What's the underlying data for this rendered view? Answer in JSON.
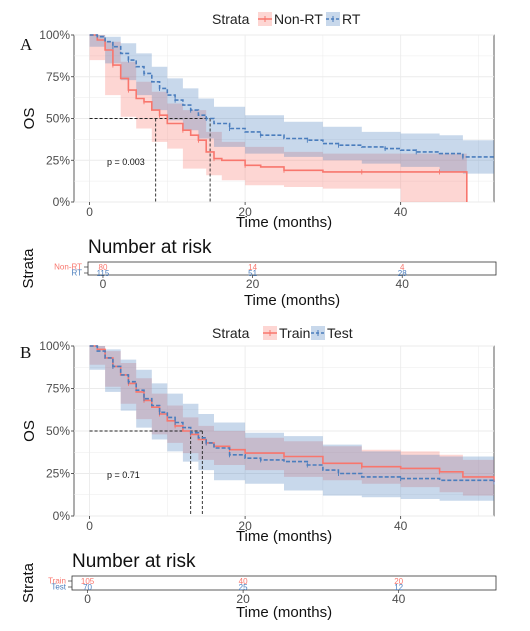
{
  "chart_data": [
    {
      "panel": "A",
      "type": "line",
      "subtype": "kaplan-meier",
      "legend_title": "Strata",
      "legend_position": "top",
      "xlabel": "Time (months)",
      "ylabel": "OS",
      "xlim": [
        -2,
        52
      ],
      "ylim": [
        0,
        1
      ],
      "xticks": [
        0,
        20,
        40
      ],
      "yticks": [
        "0%",
        "25%",
        "50%",
        "75%",
        "100%"
      ],
      "grid": true,
      "pvalue": "p = 0.003",
      "median_lines": [
        8.5,
        15.5
      ],
      "series": [
        {
          "name": "Non-RT",
          "color": "#F8766D",
          "linestyle": "solid",
          "curve": [
            [
              0,
              1.0
            ],
            [
              1,
              0.97
            ],
            [
              2,
              0.91
            ],
            [
              3,
              0.82
            ],
            [
              4,
              0.74
            ],
            [
              5,
              0.67
            ],
            [
              6,
              0.62
            ],
            [
              7,
              0.6
            ],
            [
              8,
              0.55
            ],
            [
              9,
              0.52
            ],
            [
              10,
              0.47
            ],
            [
              12,
              0.43
            ],
            [
              13,
              0.4
            ],
            [
              14,
              0.37
            ],
            [
              15,
              0.3
            ],
            [
              16,
              0.26
            ],
            [
              17,
              0.25
            ],
            [
              20,
              0.22
            ],
            [
              22,
              0.21
            ],
            [
              25,
              0.19
            ],
            [
              30,
              0.18
            ],
            [
              35,
              0.18
            ],
            [
              40,
              0.18
            ],
            [
              45,
              0.18
            ],
            [
              48.5,
              0.18
            ],
            [
              48.5,
              0.0
            ]
          ],
          "lower": [
            [
              0,
              1.0
            ],
            [
              2,
              0.85
            ],
            [
              4,
              0.64
            ],
            [
              6,
              0.51
            ],
            [
              8,
              0.44
            ],
            [
              10,
              0.36
            ],
            [
              12,
              0.32
            ],
            [
              15,
              0.2
            ],
            [
              17,
              0.16
            ],
            [
              20,
              0.13
            ],
            [
              25,
              0.1
            ],
            [
              30,
              0.09
            ],
            [
              40,
              0.08
            ],
            [
              48.5,
              0.0
            ]
          ],
          "upper": [
            [
              0,
              1.0
            ],
            [
              2,
              0.96
            ],
            [
              4,
              0.84
            ],
            [
              6,
              0.72
            ],
            [
              8,
              0.66
            ],
            [
              10,
              0.59
            ],
            [
              12,
              0.55
            ],
            [
              15,
              0.42
            ],
            [
              17,
              0.36
            ],
            [
              20,
              0.33
            ],
            [
              25,
              0.3
            ],
            [
              30,
              0.29
            ],
            [
              40,
              0.29
            ],
            [
              48.5,
              0.29
            ]
          ]
        },
        {
          "name": "RT",
          "color": "#4A7DBD",
          "linestyle": "dashed",
          "curve": [
            [
              0,
              1.0
            ],
            [
              1,
              0.99
            ],
            [
              2,
              0.96
            ],
            [
              3,
              0.93
            ],
            [
              4,
              0.89
            ],
            [
              5,
              0.85
            ],
            [
              6,
              0.81
            ],
            [
              7,
              0.77
            ],
            [
              8,
              0.72
            ],
            [
              9,
              0.68
            ],
            [
              10,
              0.64
            ],
            [
              11,
              0.61
            ],
            [
              12,
              0.58
            ],
            [
              13,
              0.55
            ],
            [
              14,
              0.52
            ],
            [
              15,
              0.5
            ],
            [
              16,
              0.47
            ],
            [
              18,
              0.44
            ],
            [
              20,
              0.42
            ],
            [
              22,
              0.4
            ],
            [
              25,
              0.38
            ],
            [
              28,
              0.37
            ],
            [
              30,
              0.35
            ],
            [
              32,
              0.34
            ],
            [
              35,
              0.33
            ],
            [
              38,
              0.32
            ],
            [
              40,
              0.31
            ],
            [
              42,
              0.3
            ],
            [
              45,
              0.29
            ],
            [
              48,
              0.27
            ],
            [
              52,
              0.26
            ]
          ],
          "lower": [
            [
              0,
              1.0
            ],
            [
              2,
              0.93
            ],
            [
              4,
              0.83
            ],
            [
              6,
              0.73
            ],
            [
              8,
              0.64
            ],
            [
              10,
              0.55
            ],
            [
              12,
              0.49
            ],
            [
              14,
              0.43
            ],
            [
              16,
              0.38
            ],
            [
              20,
              0.33
            ],
            [
              25,
              0.29
            ],
            [
              30,
              0.27
            ],
            [
              35,
              0.25
            ],
            [
              40,
              0.23
            ],
            [
              45,
              0.21
            ],
            [
              48,
              0.18
            ],
            [
              52,
              0.17
            ]
          ],
          "upper": [
            [
              0,
              1.0
            ],
            [
              2,
              0.99
            ],
            [
              4,
              0.95
            ],
            [
              6,
              0.89
            ],
            [
              8,
              0.81
            ],
            [
              10,
              0.74
            ],
            [
              12,
              0.68
            ],
            [
              14,
              0.62
            ],
            [
              16,
              0.57
            ],
            [
              20,
              0.52
            ],
            [
              25,
              0.48
            ],
            [
              30,
              0.45
            ],
            [
              35,
              0.42
            ],
            [
              40,
              0.41
            ],
            [
              45,
              0.4
            ],
            [
              48,
              0.37
            ],
            [
              52,
              0.36
            ]
          ]
        }
      ],
      "risk_table": {
        "title": "Number at risk",
        "ylabel": "Strata",
        "xlabel": "Time (months)",
        "times": [
          0,
          20,
          40
        ],
        "rows": [
          {
            "label": "Non-RT",
            "color": "#F8766D",
            "counts": [
              "80",
              "14",
              "4"
            ]
          },
          {
            "label": "RT",
            "color": "#4A7DBD",
            "counts": [
              "115",
              "51",
              "28"
            ]
          }
        ]
      }
    },
    {
      "panel": "B",
      "type": "line",
      "subtype": "kaplan-meier",
      "legend_title": "Strata",
      "legend_position": "top",
      "xlabel": "Time (months)",
      "ylabel": "OS",
      "xlim": [
        -2,
        52
      ],
      "ylim": [
        0,
        1
      ],
      "xticks": [
        0,
        20,
        40
      ],
      "yticks": [
        "0%",
        "25%",
        "50%",
        "75%",
        "100%"
      ],
      "grid": true,
      "pvalue": "p = 0.71",
      "median_lines": [
        13,
        14.5
      ],
      "series": [
        {
          "name": "Train",
          "color": "#F8766D",
          "linestyle": "solid",
          "curve": [
            [
              0,
              1.0
            ],
            [
              1,
              0.98
            ],
            [
              2,
              0.93
            ],
            [
              3,
              0.88
            ],
            [
              4,
              0.83
            ],
            [
              5,
              0.78
            ],
            [
              6,
              0.73
            ],
            [
              7,
              0.68
            ],
            [
              8,
              0.64
            ],
            [
              9,
              0.6
            ],
            [
              10,
              0.56
            ],
            [
              11,
              0.53
            ],
            [
              12,
              0.5
            ],
            [
              13,
              0.48
            ],
            [
              14,
              0.45
            ],
            [
              15,
              0.43
            ],
            [
              16,
              0.41
            ],
            [
              18,
              0.39
            ],
            [
              20,
              0.37
            ],
            [
              25,
              0.35
            ],
            [
              30,
              0.31
            ],
            [
              35,
              0.29
            ],
            [
              40,
              0.28
            ],
            [
              45,
              0.26
            ],
            [
              48,
              0.23
            ],
            [
              52,
              0.2
            ]
          ],
          "lower": [
            [
              0,
              1.0
            ],
            [
              2,
              0.89
            ],
            [
              4,
              0.76
            ],
            [
              6,
              0.66
            ],
            [
              8,
              0.57
            ],
            [
              10,
              0.48
            ],
            [
              12,
              0.43
            ],
            [
              14,
              0.37
            ],
            [
              16,
              0.33
            ],
            [
              20,
              0.3
            ],
            [
              25,
              0.27
            ],
            [
              30,
              0.23
            ],
            [
              35,
              0.21
            ],
            [
              40,
              0.19
            ],
            [
              45,
              0.17
            ],
            [
              48,
              0.14
            ],
            [
              52,
              0.12
            ]
          ],
          "upper": [
            [
              0,
              1.0
            ],
            [
              2,
              0.97
            ],
            [
              4,
              0.9
            ],
            [
              6,
              0.81
            ],
            [
              8,
              0.72
            ],
            [
              10,
              0.65
            ],
            [
              12,
              0.58
            ],
            [
              14,
              0.53
            ],
            [
              16,
              0.5
            ],
            [
              20,
              0.46
            ],
            [
              25,
              0.44
            ],
            [
              30,
              0.41
            ],
            [
              35,
              0.39
            ],
            [
              40,
              0.38
            ],
            [
              45,
              0.36
            ],
            [
              48,
              0.33
            ],
            [
              52,
              0.32
            ]
          ]
        },
        {
          "name": "Test",
          "color": "#4A7DBD",
          "linestyle": "dashed",
          "curve": [
            [
              0,
              1.0
            ],
            [
              1,
              0.97
            ],
            [
              2,
              0.93
            ],
            [
              3,
              0.88
            ],
            [
              4,
              0.83
            ],
            [
              5,
              0.79
            ],
            [
              6,
              0.74
            ],
            [
              7,
              0.69
            ],
            [
              8,
              0.65
            ],
            [
              9,
              0.61
            ],
            [
              10,
              0.58
            ],
            [
              11,
              0.55
            ],
            [
              12,
              0.52
            ],
            [
              13,
              0.49
            ],
            [
              14,
              0.46
            ],
            [
              15,
              0.43
            ],
            [
              16,
              0.4
            ],
            [
              18,
              0.36
            ],
            [
              20,
              0.34
            ],
            [
              22,
              0.33
            ],
            [
              25,
              0.32
            ],
            [
              28,
              0.3
            ],
            [
              30,
              0.27
            ],
            [
              32,
              0.25
            ],
            [
              35,
              0.23
            ],
            [
              40,
              0.22
            ],
            [
              45,
              0.21
            ],
            [
              52,
              0.2
            ]
          ],
          "lower": [
            [
              0,
              1.0
            ],
            [
              2,
              0.86
            ],
            [
              4,
              0.73
            ],
            [
              6,
              0.62
            ],
            [
              8,
              0.52
            ],
            [
              10,
              0.45
            ],
            [
              12,
              0.38
            ],
            [
              14,
              0.32
            ],
            [
              16,
              0.27
            ],
            [
              20,
              0.21
            ],
            [
              25,
              0.19
            ],
            [
              30,
              0.15
            ],
            [
              35,
              0.12
            ],
            [
              40,
              0.11
            ],
            [
              45,
              0.1
            ],
            [
              52,
              0.09
            ]
          ],
          "upper": [
            [
              0,
              1.0
            ],
            [
              2,
              0.98
            ],
            [
              4,
              0.92
            ],
            [
              6,
              0.86
            ],
            [
              8,
              0.78
            ],
            [
              10,
              0.72
            ],
            [
              12,
              0.66
            ],
            [
              14,
              0.6
            ],
            [
              16,
              0.55
            ],
            [
              20,
              0.49
            ],
            [
              25,
              0.47
            ],
            [
              30,
              0.42
            ],
            [
              35,
              0.38
            ],
            [
              40,
              0.36
            ],
            [
              45,
              0.35
            ],
            [
              52,
              0.33
            ]
          ]
        }
      ],
      "risk_table": {
        "title": "Number at risk",
        "ylabel": "Strata",
        "xlabel": "Time (months)",
        "times": [
          0,
          20,
          40
        ],
        "rows": [
          {
            "label": "Train",
            "color": "#F8766D",
            "counts": [
              "105",
              "40",
              "20"
            ]
          },
          {
            "label": "Test",
            "color": "#4A7DBD",
            "counts": [
              "70",
              "25",
              "12"
            ]
          }
        ]
      }
    }
  ]
}
